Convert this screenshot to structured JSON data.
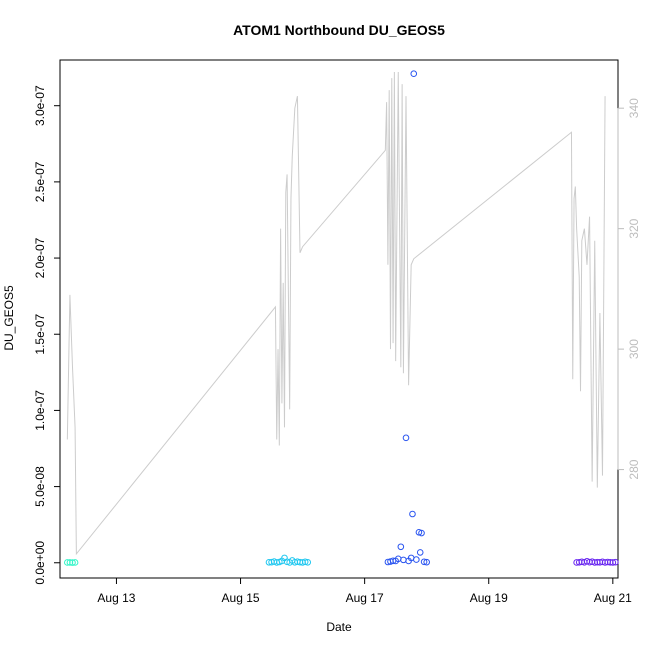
{
  "chart_data": {
    "type": "scatter",
    "title": "ATOM1 Northbound DU_GEOS5",
    "xlabel": "Date",
    "ylabel": "DU_GEOS5",
    "x_range": [
      "Aug 12 02:10",
      "Aug 21 02:00"
    ],
    "ylim": [
      -1e-08,
      3.3e-07
    ],
    "y_ticks": [
      0,
      5e-08,
      1e-07,
      1.5e-07,
      2e-07,
      2.5e-07,
      3e-07
    ],
    "y_tick_labels": [
      "0.0e+00",
      "5.0e-08",
      "1.0e-07",
      "1.5e-07",
      "2.0e-07",
      "2.5e-07",
      "3.0e-07"
    ],
    "x_ticks": [
      "Aug 13 00:00",
      "Aug 15 00:00",
      "Aug 17 00:00",
      "Aug 19 00:00",
      "Aug 21 00:00"
    ],
    "x_tick_labels": [
      "Aug 13",
      "Aug 15",
      "Aug 17",
      "Aug 19",
      "Aug 21"
    ],
    "y2lim": [
      262,
      348
    ],
    "y2_ticks": [
      280,
      300,
      320,
      340
    ],
    "y2_tick_labels": [
      "280",
      "300",
      "320",
      "340"
    ],
    "grid": false,
    "legend": "none",
    "line_color": "#cccccc",
    "series": [
      {
        "color": "#33f5c8",
        "points": [
          [
            "Aug 12 05:00",
            2e-10
          ],
          [
            "Aug 12 06:00",
            2e-10
          ],
          [
            "Aug 12 07:00",
            1e-10
          ],
          [
            "Aug 12 08:00",
            2e-10
          ]
        ]
      },
      {
        "color": "#22c8f0",
        "points": [
          [
            "Aug 15 11:00",
            3e-10
          ],
          [
            "Aug 15 12:00",
            4e-10
          ],
          [
            "Aug 15 13:00",
            8e-10
          ],
          [
            "Aug 15 14:00",
            2e-10
          ],
          [
            "Aug 15 15:00",
            5e-10
          ],
          [
            "Aug 15 16:00",
            1.2e-09
          ],
          [
            "Aug 15 17:00",
            3.2e-09
          ],
          [
            "Aug 15 18:00",
            6e-10
          ],
          [
            "Aug 15 19:00",
            2e-10
          ],
          [
            "Aug 15 20:00",
            1.5e-09
          ],
          [
            "Aug 15 21:00",
            3e-10
          ],
          [
            "Aug 15 22:00",
            7e-10
          ],
          [
            "Aug 15 23:00",
            4e-10
          ],
          [
            "Aug 16 00:00",
            2e-10
          ],
          [
            "Aug 16 01:00",
            6e-10
          ],
          [
            "Aug 16 02:00",
            3e-10
          ]
        ]
      },
      {
        "color": "#2a55f0",
        "points": [
          [
            "Aug 17 09:00",
            5e-10
          ],
          [
            "Aug 17 10:00",
            8e-10
          ],
          [
            "Aug 17 11:00",
            1.3e-09
          ],
          [
            "Aug 17 12:00",
            1.2e-09
          ],
          [
            "Aug 17 13:00",
            2.6e-09
          ],
          [
            "Aug 17 14:00",
            1.05e-08
          ],
          [
            "Aug 17 15:00",
            1.9e-09
          ],
          [
            "Aug 17 16:00",
            8.2e-08
          ],
          [
            "Aug 17 17:00",
            1.2e-09
          ],
          [
            "Aug 17 18:00",
            3.2e-09
          ],
          [
            "Aug 17 18:30",
            3.2e-08
          ],
          [
            "Aug 17 19:00",
            3.21e-07
          ],
          [
            "Aug 17 20:00",
            2.1e-09
          ],
          [
            "Aug 17 21:00",
            2e-08
          ],
          [
            "Aug 17 21:30",
            6.8e-09
          ],
          [
            "Aug 17 22:00",
            1.95e-08
          ],
          [
            "Aug 17 23:00",
            6e-10
          ],
          [
            "Aug 18 00:00",
            4e-10
          ]
        ]
      },
      {
        "color": "#6a28f0",
        "points": [
          [
            "Aug 20 10:00",
            2e-10
          ],
          [
            "Aug 20 11:00",
            3e-10
          ],
          [
            "Aug 20 12:00",
            6e-10
          ],
          [
            "Aug 20 13:00",
            3e-10
          ],
          [
            "Aug 20 14:00",
            1e-09
          ],
          [
            "Aug 20 15:00",
            4e-10
          ],
          [
            "Aug 20 16:00",
            7e-10
          ],
          [
            "Aug 20 17:00",
            2e-10
          ],
          [
            "Aug 20 18:00",
            4e-10
          ],
          [
            "Aug 20 19:00",
            3e-10
          ],
          [
            "Aug 20 20:00",
            6e-10
          ],
          [
            "Aug 20 21:00",
            2e-10
          ],
          [
            "Aug 20 22:00",
            5e-10
          ],
          [
            "Aug 20 23:00",
            3e-10
          ],
          [
            "Aug 21 00:00",
            2e-10
          ],
          [
            "Aug 21 01:00",
            4e-10
          ]
        ]
      }
    ],
    "secondary_line": [
      [
        "Aug 12 05:00",
        285
      ],
      [
        "Aug 12 06:00",
        309
      ],
      [
        "Aug 12 07:00",
        297
      ],
      [
        "Aug 12 08:00",
        287
      ],
      [
        "Aug 12 08:30",
        266
      ],
      [
        "Aug 15 13:30",
        307
      ],
      [
        "Aug 15 14:00",
        285
      ],
      [
        "Aug 15 14:30",
        300
      ],
      [
        "Aug 15 15:00",
        284
      ],
      [
        "Aug 15 15:30",
        320
      ],
      [
        "Aug 15 16:00",
        291
      ],
      [
        "Aug 15 16:30",
        311
      ],
      [
        "Aug 15 17:00",
        287
      ],
      [
        "Aug 15 17:30",
        326
      ],
      [
        "Aug 15 18:00",
        329
      ],
      [
        "Aug 15 19:00",
        290
      ],
      [
        "Aug 15 19:30",
        325
      ],
      [
        "Aug 15 20:00",
        332
      ],
      [
        "Aug 15 21:00",
        340
      ],
      [
        "Aug 15 22:00",
        342
      ],
      [
        "Aug 15 23:00",
        316
      ],
      [
        "Aug 16 00:00",
        317
      ],
      [
        "Aug 17 08:00",
        333
      ],
      [
        "Aug 17 08:30",
        341
      ],
      [
        "Aug 17 09:00",
        314
      ],
      [
        "Aug 17 09:30",
        343
      ],
      [
        "Aug 17 10:00",
        300
      ],
      [
        "Aug 17 10:30",
        345
      ],
      [
        "Aug 17 11:00",
        301
      ],
      [
        "Aug 17 11:30",
        346
      ],
      [
        "Aug 17 12:00",
        298
      ],
      [
        "Aug 17 13:00",
        346
      ],
      [
        "Aug 17 14:00",
        297
      ],
      [
        "Aug 17 14:30",
        344
      ],
      [
        "Aug 17 15:00",
        296
      ],
      [
        "Aug 17 16:00",
        342
      ],
      [
        "Aug 17 17:00",
        294
      ],
      [
        "Aug 17 18:00",
        314
      ],
      [
        "Aug 17 19:00",
        315
      ],
      [
        "Aug 20 08:00",
        336
      ],
      [
        "Aug 20 08:30",
        295
      ],
      [
        "Aug 20 09:00",
        325
      ],
      [
        "Aug 20 09:30",
        327
      ],
      [
        "Aug 20 10:00",
        320
      ],
      [
        "Aug 20 11:00",
        312
      ],
      [
        "Aug 20 11:30",
        293
      ],
      [
        "Aug 20 12:00",
        318
      ],
      [
        "Aug 20 13:00",
        320
      ],
      [
        "Aug 20 14:00",
        314
      ],
      [
        "Aug 20 15:00",
        322
      ],
      [
        "Aug 20 16:00",
        278
      ],
      [
        "Aug 20 17:00",
        318
      ],
      [
        "Aug 20 18:00",
        277
      ],
      [
        "Aug 20 19:00",
        306
      ],
      [
        "Aug 20 20:00",
        279
      ],
      [
        "Aug 20 21:00",
        342
      ]
    ]
  }
}
